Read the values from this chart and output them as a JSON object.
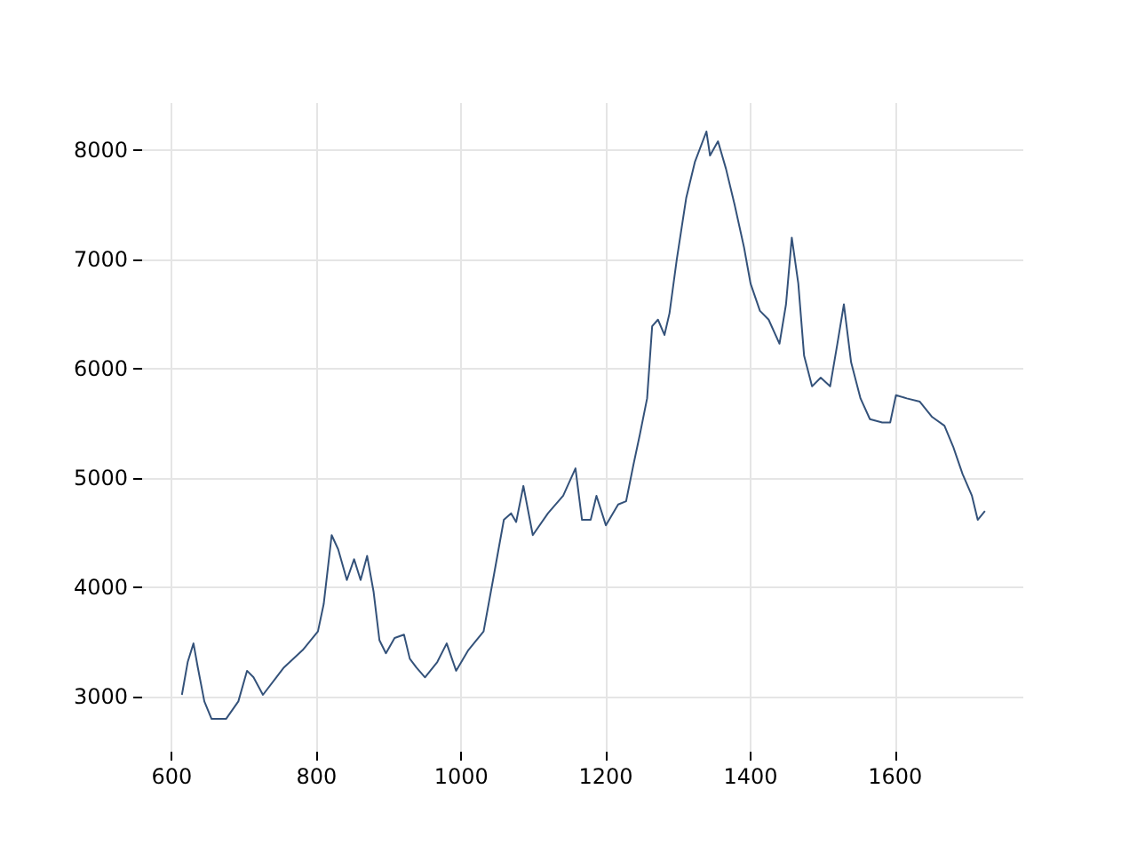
{
  "chart_data": {
    "type": "line",
    "xlim": [
      559,
      1777
    ],
    "ylim": [
      2500,
      8430
    ],
    "xticks": [
      600,
      800,
      1000,
      1200,
      1400,
      1600
    ],
    "yticks": [
      3000,
      4000,
      5000,
      6000,
      7000,
      8000
    ],
    "grid": true,
    "marker": "none",
    "line_style": "solid",
    "x": [
      614,
      622,
      630,
      636,
      645,
      655,
      675,
      692,
      704,
      713,
      726,
      755,
      781,
      802,
      810,
      821,
      830,
      842,
      852,
      861,
      870,
      879,
      887,
      896,
      908,
      921,
      929,
      938,
      950,
      967,
      980,
      993,
      1010,
      1031,
      1044,
      1059,
      1069,
      1076,
      1086,
      1099,
      1120,
      1141,
      1158,
      1167,
      1179,
      1187,
      1200,
      1217,
      1228,
      1238,
      1247,
      1257,
      1264,
      1272,
      1281,
      1288,
      1298,
      1311,
      1323,
      1339,
      1344,
      1355,
      1366,
      1378,
      1391,
      1400,
      1413,
      1425,
      1440,
      1449,
      1457,
      1466,
      1474,
      1485,
      1497,
      1510,
      1520,
      1529,
      1539,
      1552,
      1565,
      1582,
      1593,
      1601,
      1616,
      1634,
      1651,
      1668,
      1680,
      1693,
      1706,
      1714,
      1724
    ],
    "series": [
      {
        "color": "#34527a",
        "values": [
          3020,
          3320,
          3490,
          3270,
          2960,
          2800,
          2800,
          2960,
          3240,
          3180,
          3020,
          3270,
          3430,
          3600,
          3850,
          4480,
          4350,
          4070,
          4260,
          4070,
          4290,
          3960,
          3520,
          3400,
          3540,
          3570,
          3350,
          3270,
          3180,
          3320,
          3490,
          3240,
          3430,
          3600,
          4070,
          4620,
          4680,
          4600,
          4930,
          4480,
          4680,
          4840,
          5090,
          4620,
          4620,
          4840,
          4570,
          4760,
          4790,
          5120,
          5400,
          5730,
          6390,
          6450,
          6310,
          6510,
          7000,
          7560,
          7890,
          8170,
          7950,
          8080,
          7830,
          7500,
          7110,
          6780,
          6530,
          6450,
          6230,
          6590,
          7200,
          6780,
          6120,
          5840,
          5920,
          5840,
          6230,
          6590,
          6060,
          5730,
          5540,
          5510,
          5510,
          5760,
          5730,
          5700,
          5560,
          5480,
          5290,
          5040,
          4840,
          4620,
          4700
        ]
      }
    ]
  }
}
